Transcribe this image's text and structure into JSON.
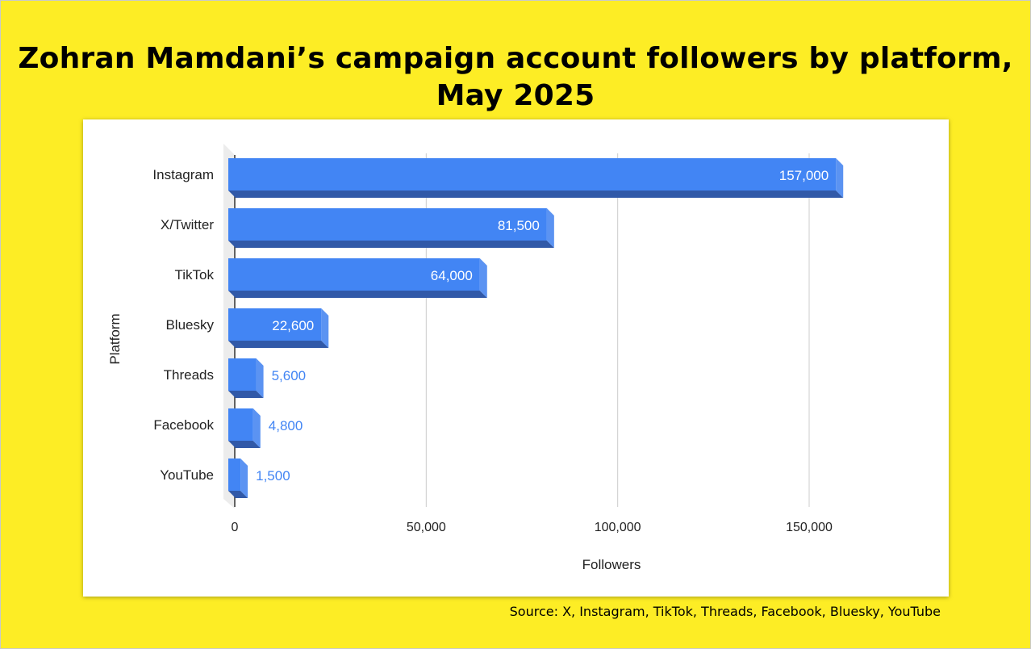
{
  "title": "Zohran Mamdani’s campaign account followers by platform, May 2025",
  "source": "Source: X, Instagram, TikTok, Threads, Facebook, Bluesky, YouTube",
  "colors": {
    "background": "#fded25",
    "bar_face": "#4285f4",
    "bar_side": "#5b93f2",
    "bar_bottom": "#3159a8",
    "label_outside": "#4285f4"
  },
  "chart_data": {
    "type": "bar",
    "orientation": "horizontal",
    "style": "3d",
    "categories": [
      "Instagram",
      "X/Twitter",
      "TikTok",
      "Bluesky",
      "Threads",
      "Facebook",
      "YouTube"
    ],
    "values": [
      157000,
      81500,
      64000,
      22600,
      5600,
      4800,
      1500
    ],
    "data_labels": [
      "157,000",
      "81,500",
      "64,000",
      "22,600",
      "5,600",
      "4,800",
      "1,500"
    ],
    "xlabel": "Followers",
    "ylabel": "Platform",
    "xlim": [
      0,
      170000
    ],
    "xticks": [
      0,
      50000,
      100000,
      150000
    ],
    "xtick_labels": [
      "0",
      "50,000",
      "100,000",
      "150,000"
    ],
    "grid": true,
    "legend": "none"
  }
}
